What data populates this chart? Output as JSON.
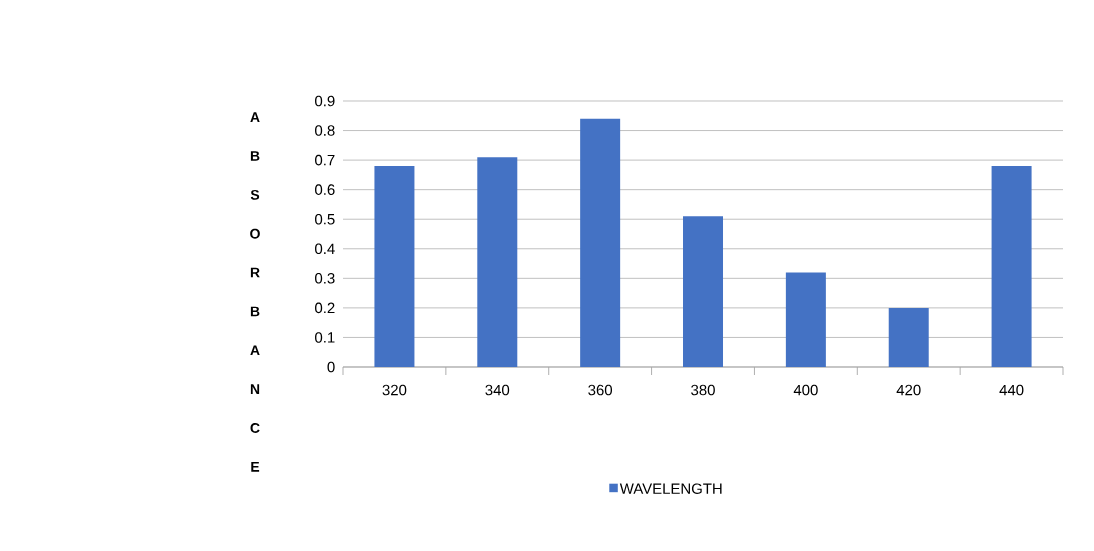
{
  "chart_data": {
    "type": "bar",
    "ylabel": "ABSORBANCE",
    "categories": [
      "320",
      "340",
      "360",
      "380",
      "400",
      "420",
      "440"
    ],
    "series": [
      {
        "name": "WAVELENGTH",
        "color": "#4472c4",
        "values": [
          0.68,
          0.71,
          0.84,
          0.51,
          0.32,
          0.2,
          0.68
        ]
      }
    ],
    "ylim": [
      0,
      0.9
    ],
    "yticks": [
      0,
      0.1,
      0.2,
      0.3,
      0.4,
      0.5,
      0.6,
      0.7,
      0.8,
      0.9
    ],
    "grid": "y",
    "legend": "bottom"
  }
}
